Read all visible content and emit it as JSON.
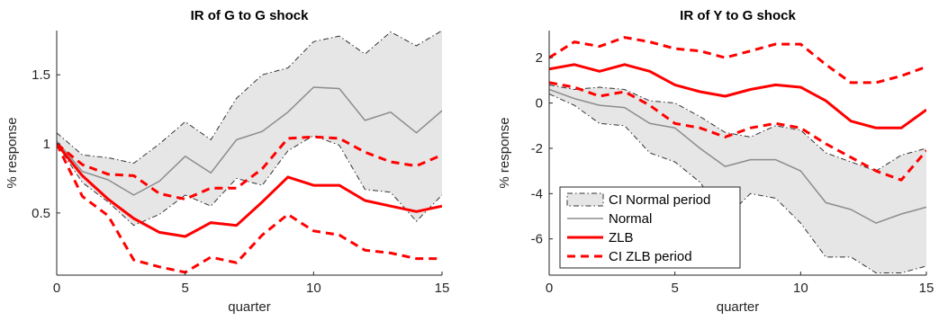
{
  "chart_data": [
    {
      "type": "line",
      "title": "IR of G to G shock",
      "xlabel": "quarter",
      "ylabel": "% response",
      "xlim": [
        0,
        15
      ],
      "ylim": [
        0.05,
        1.82
      ],
      "xticks": [
        0,
        5,
        10,
        15
      ],
      "yticks": [
        0.5,
        1,
        1.5
      ],
      "ytick_labels": [
        "0.5",
        "1",
        "1.5"
      ],
      "grid": false,
      "x": [
        0,
        1,
        2,
        3,
        4,
        5,
        6,
        7,
        8,
        9,
        10,
        11,
        12,
        13,
        14,
        15
      ],
      "band": {
        "name": "CI Normal period",
        "color": "#e6e6e6",
        "lower": [
          1.0,
          0.72,
          0.58,
          0.41,
          0.49,
          0.63,
          0.55,
          0.75,
          0.7,
          0.95,
          1.06,
          0.99,
          0.67,
          0.65,
          0.44,
          0.63
        ],
        "upper": [
          1.08,
          0.92,
          0.9,
          0.86,
          1.0,
          1.16,
          1.03,
          1.33,
          1.5,
          1.55,
          1.74,
          1.78,
          1.65,
          1.81,
          1.71,
          1.82
        ]
      },
      "series": [
        {
          "name": "Normal",
          "style": "solid-thin",
          "color": "#8c8c8c",
          "values": [
            1.02,
            0.8,
            0.74,
            0.63,
            0.73,
            0.91,
            0.79,
            1.03,
            1.09,
            1.23,
            1.41,
            1.4,
            1.17,
            1.23,
            1.08,
            1.24
          ]
        },
        {
          "name": "ZLB",
          "style": "solid-thick",
          "color": "#ff0000",
          "values": [
            1.0,
            0.77,
            0.6,
            0.46,
            0.36,
            0.33,
            0.43,
            0.41,
            0.58,
            0.76,
            0.7,
            0.7,
            0.59,
            0.55,
            0.51,
            0.55
          ]
        },
        {
          "name": "CI ZLB period",
          "style": "dashed-thick",
          "color": "#ff0000",
          "values": [
            1.0,
            0.85,
            0.78,
            0.77,
            0.64,
            0.6,
            0.68,
            0.68,
            0.82,
            1.04,
            1.05,
            1.04,
            0.94,
            0.87,
            0.84,
            0.92
          ]
        },
        {
          "name": "CI ZLB period",
          "style": "dashed-thick",
          "color": "#ff0000",
          "values": [
            1.0,
            0.62,
            0.48,
            0.16,
            0.11,
            0.07,
            0.18,
            0.14,
            0.34,
            0.49,
            0.37,
            0.34,
            0.23,
            0.21,
            0.17,
            0.17
          ]
        }
      ]
    },
    {
      "type": "line",
      "title": "IR of Y to G shock",
      "xlabel": "quarter",
      "ylabel": "% response",
      "xlim": [
        0,
        15
      ],
      "ylim": [
        -7.6,
        3.2
      ],
      "xticks": [
        0,
        5,
        10,
        15
      ],
      "yticks": [
        -6,
        -4,
        -2,
        0,
        2
      ],
      "ytick_labels": [
        "-6",
        "-4",
        "-2",
        "0",
        "2"
      ],
      "grid": false,
      "x": [
        0,
        1,
        2,
        3,
        4,
        5,
        6,
        7,
        8,
        9,
        10,
        11,
        12,
        13,
        14,
        15
      ],
      "band": {
        "name": "CI Normal period",
        "color": "#e6e6e6",
        "lower": [
          0.4,
          -0.1,
          -0.9,
          -1.0,
          -2.2,
          -2.6,
          -3.5,
          -5.1,
          -4.0,
          -4.2,
          -5.3,
          -6.8,
          -6.8,
          -7.5,
          -7.5,
          -7.2
        ],
        "upper": [
          0.8,
          0.6,
          0.7,
          0.6,
          0.1,
          0.0,
          -0.6,
          -1.3,
          -1.5,
          -1.0,
          -1.2,
          -2.2,
          -2.6,
          -3.0,
          -2.3,
          -2.0
        ]
      },
      "legend": {
        "location": "bottom-left",
        "entries": [
          "CI Normal period",
          "Normal",
          "ZLB",
          "CI ZLB period"
        ]
      },
      "series": [
        {
          "name": "Normal",
          "style": "solid-thin",
          "color": "#8c8c8c",
          "values": [
            0.6,
            0.2,
            -0.1,
            -0.2,
            -0.9,
            -1.1,
            -2.0,
            -2.8,
            -2.5,
            -2.5,
            -3.0,
            -4.4,
            -4.7,
            -5.3,
            -4.9,
            -4.6
          ]
        },
        {
          "name": "ZLB",
          "style": "solid-thick",
          "color": "#ff0000",
          "values": [
            1.5,
            1.7,
            1.4,
            1.7,
            1.4,
            0.8,
            0.5,
            0.3,
            0.6,
            0.8,
            0.7,
            0.1,
            -0.8,
            -1.1,
            -1.1,
            -0.3
          ]
        },
        {
          "name": "CI ZLB period",
          "style": "dashed-thick",
          "color": "#ff0000",
          "values": [
            2.0,
            2.7,
            2.5,
            2.9,
            2.7,
            2.4,
            2.3,
            2.0,
            2.3,
            2.6,
            2.6,
            1.7,
            0.9,
            0.9,
            1.2,
            1.6
          ]
        },
        {
          "name": "CI ZLB period",
          "style": "dashed-thick",
          "color": "#ff0000",
          "values": [
            0.9,
            0.7,
            0.3,
            0.5,
            -0.1,
            -0.9,
            -1.1,
            -1.5,
            -1.1,
            -0.9,
            -1.1,
            -1.8,
            -2.4,
            -3.0,
            -3.4,
            -2.1
          ]
        }
      ]
    }
  ]
}
